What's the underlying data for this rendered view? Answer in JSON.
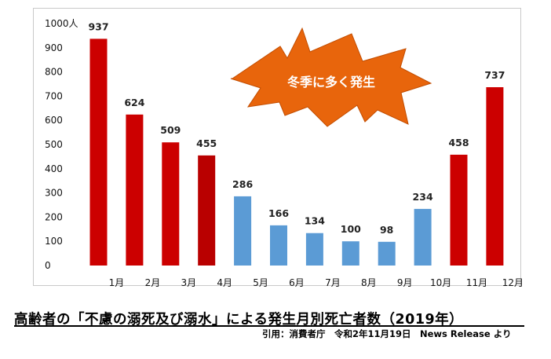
{
  "chart_data": {
    "type": "bar",
    "categories": [
      "1月",
      "2月",
      "3月",
      "4月",
      "5月",
      "6月",
      "7月",
      "8月",
      "9月",
      "10月",
      "11月",
      "12月"
    ],
    "values": [
      937,
      624,
      509,
      455,
      286,
      166,
      134,
      100,
      98,
      234,
      458,
      737
    ],
    "value_labels": [
      "937",
      "624",
      "509",
      "455",
      "286",
      "166",
      "134",
      "100",
      "98",
      "234",
      "458",
      "737"
    ],
    "y_ticks": [
      "0",
      "100",
      "200",
      "300",
      "400",
      "500",
      "600",
      "700",
      "800",
      "900",
      "1000人"
    ],
    "ylim": [
      0,
      1000
    ],
    "grid": false,
    "colors": {
      "winter": "#cc0000",
      "winter_dark": "#b90000",
      "summer": "#5b9bd5",
      "burst_fill": "#e8650c",
      "burst_text": "#ffffff"
    },
    "bar_groups": [
      "winter",
      "winter",
      "winter",
      "winter_dark",
      "summer",
      "summer",
      "summer",
      "summer",
      "summer",
      "summer",
      "winter",
      "winter"
    ],
    "annotation": "冬季に多く発生"
  },
  "caption": "高齢者の「不慮の溺死及び溺水」による発生月別死亡者数（2019年）",
  "source": "引用：消費者庁　令和2年11月19日　News Release より"
}
